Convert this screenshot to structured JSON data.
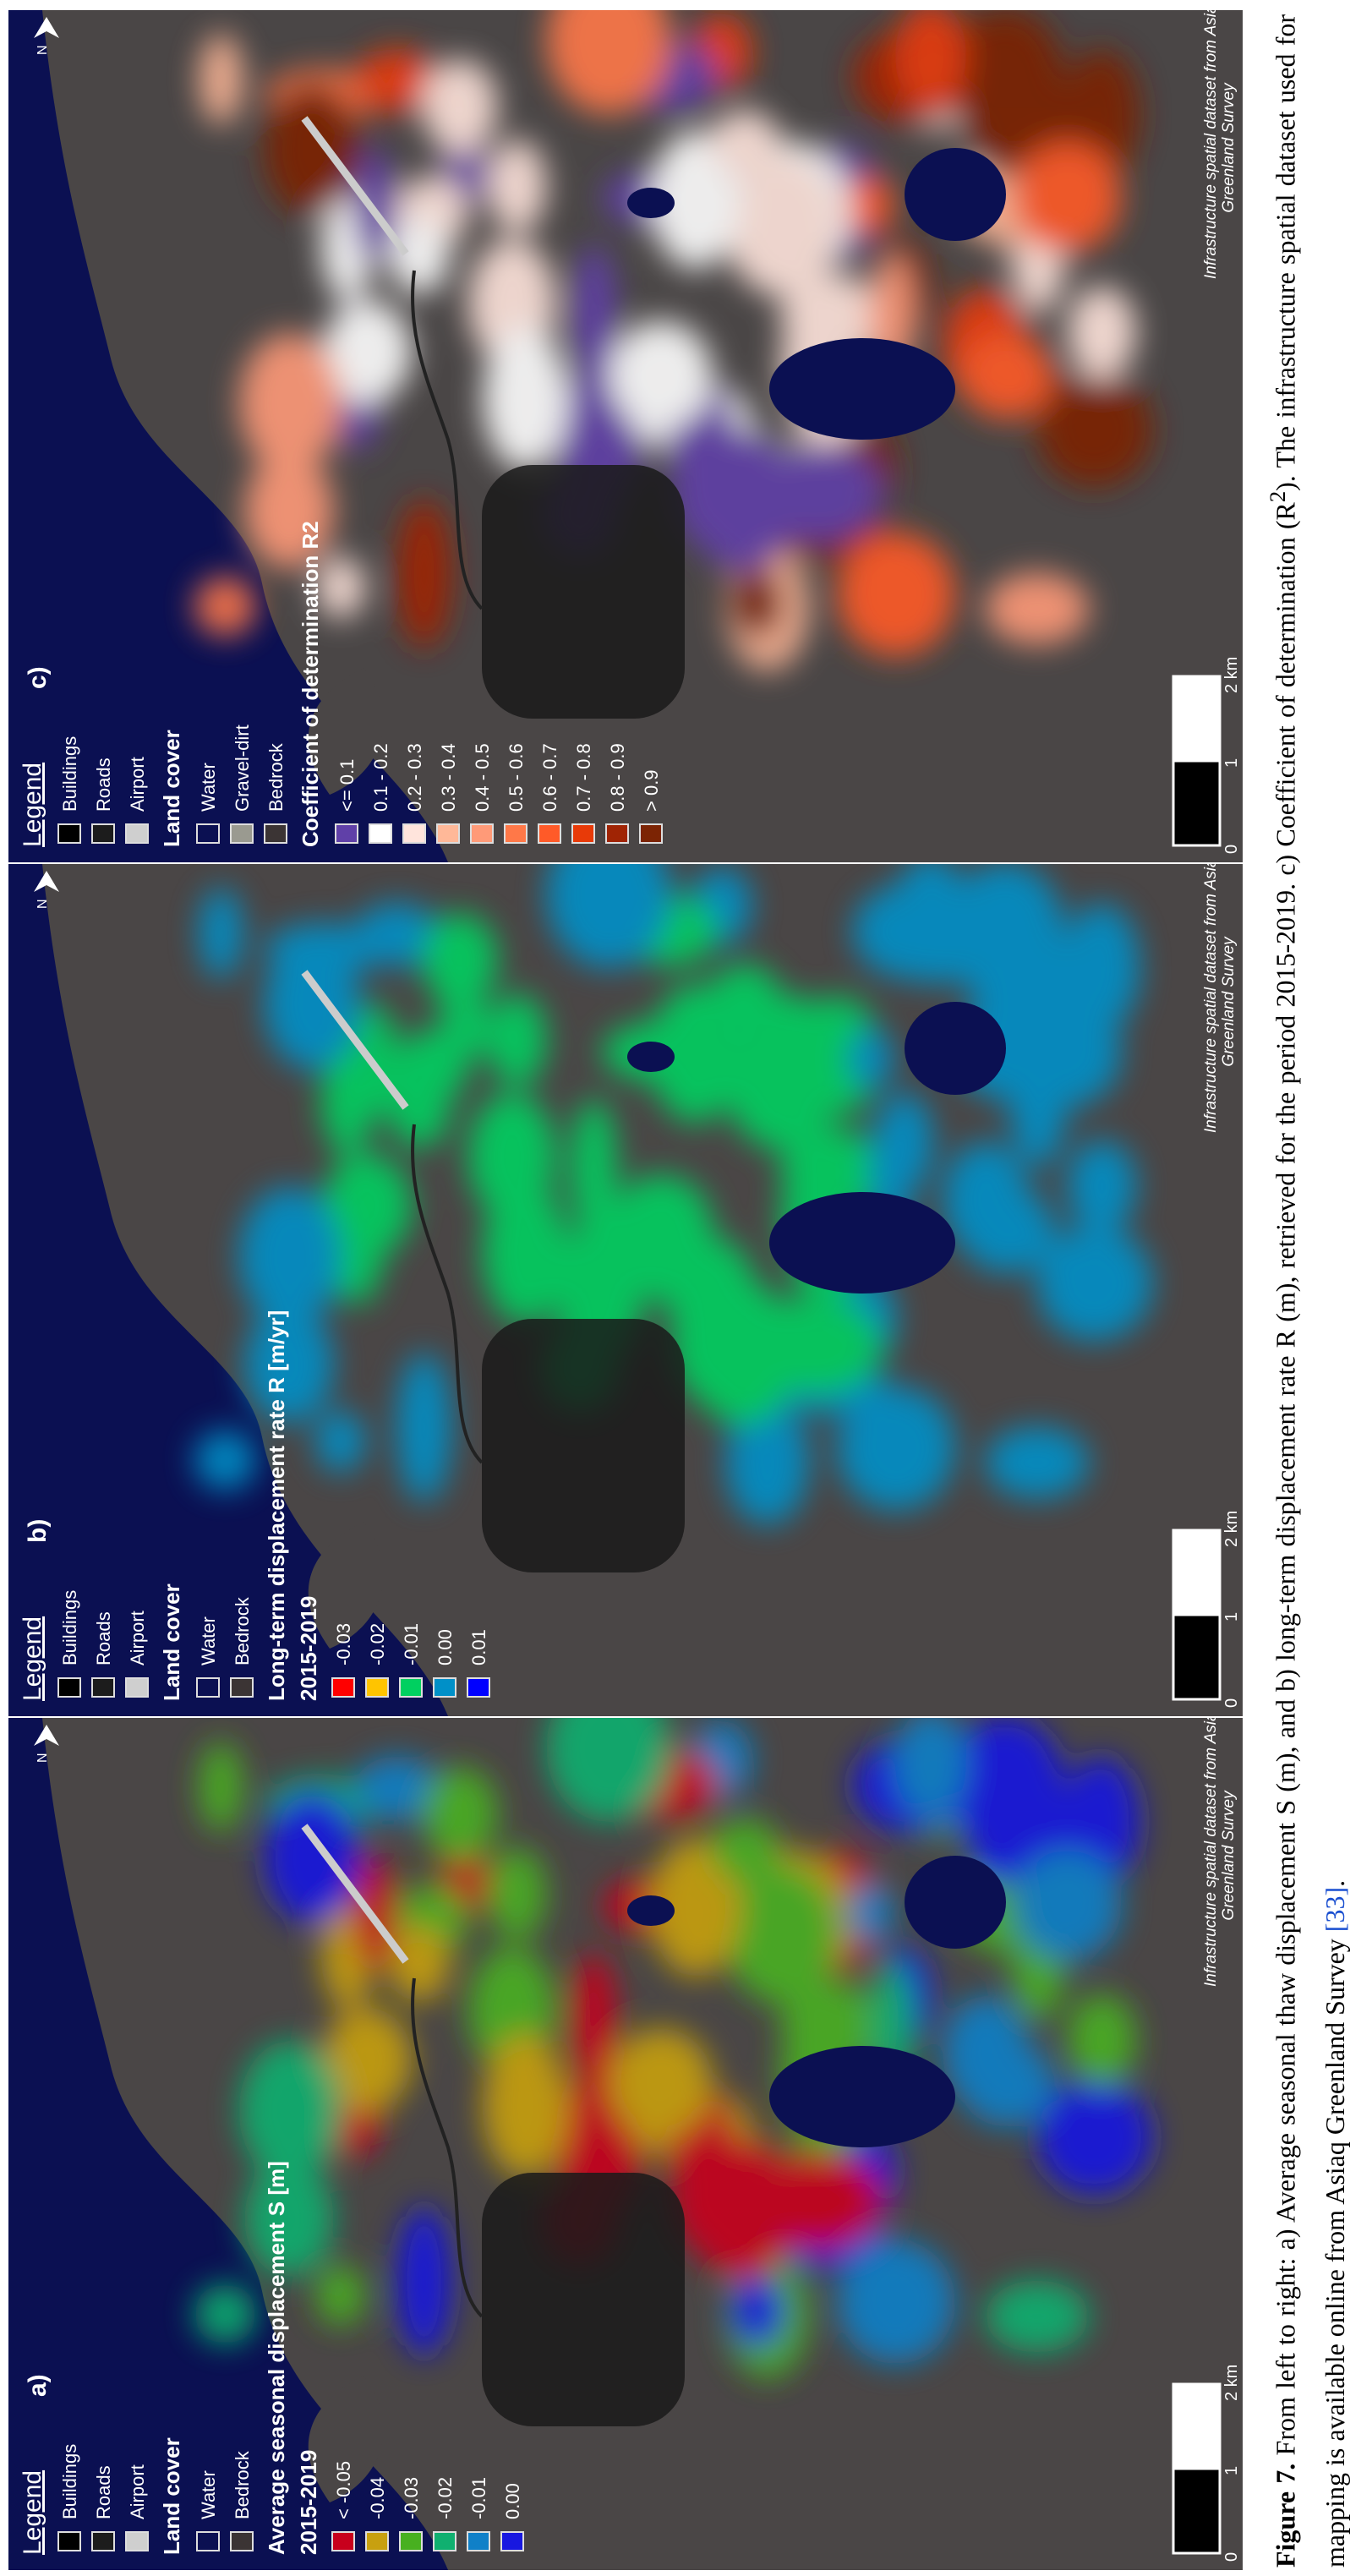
{
  "panels": [
    {
      "label": "a)",
      "legend_title": "Legend",
      "infrastructure": [
        {
          "label": "Buildings",
          "color": "#000000"
        },
        {
          "label": "Roads",
          "color": "#1c1c1c"
        },
        {
          "label": "Airport",
          "color": "#cfcfcf"
        }
      ],
      "land_cover_title": "Land cover",
      "land_cover": [
        {
          "label": "Water",
          "color": "#0b1052"
        },
        {
          "label": "Bedrock",
          "color": "#3b3434"
        }
      ],
      "scale_title": "Average seasonal displacement S [m]",
      "period": "2015-2019",
      "classes": [
        {
          "label": "< -0.05",
          "color": "#c8001c"
        },
        {
          "label": "-0.04",
          "color": "#c8a010"
        },
        {
          "label": "-0.03",
          "color": "#48b020"
        },
        {
          "label": "-0.02",
          "color": "#10b070"
        },
        {
          "label": "-0.01",
          "color": "#1080c8"
        },
        {
          "label": "0.00",
          "color": "#1818e0"
        }
      ],
      "scale_bar": [
        "0",
        "1",
        "2 km"
      ],
      "north": "N",
      "credit": [
        "Infrastructure spatial dataset from Asiaq",
        "Greenland Survey"
      ]
    },
    {
      "label": "b)",
      "legend_title": "Legend",
      "infrastructure": [
        {
          "label": "Buildings",
          "color": "#000000"
        },
        {
          "label": "Roads",
          "color": "#1c1c1c"
        },
        {
          "label": "Airport",
          "color": "#cfcfcf"
        }
      ],
      "land_cover_title": "Land cover",
      "land_cover": [
        {
          "label": "Water",
          "color": "#0b1052"
        },
        {
          "label": "Bedrock",
          "color": "#3b3434"
        }
      ],
      "scale_title": "Long-term displacement rate R [m/yr]",
      "period": "2015-2019",
      "classes": [
        {
          "label": "-0.03",
          "color": "#ff0000"
        },
        {
          "label": "-0.02",
          "color": "#ffc400"
        },
        {
          "label": "-0.01",
          "color": "#00d060"
        },
        {
          "label": "0.00",
          "color": "#0090c8"
        },
        {
          "label": "0.01",
          "color": "#0000ff"
        }
      ],
      "scale_bar": [
        "0",
        "1",
        "2 km"
      ],
      "north": "N",
      "credit": [
        "Infrastructure spatial dataset from Asiaq",
        "Greenland Survey"
      ]
    },
    {
      "label": "c)",
      "legend_title": "Legend",
      "infrastructure": [
        {
          "label": "Buildings",
          "color": "#000000"
        },
        {
          "label": "Roads",
          "color": "#1c1c1c"
        },
        {
          "label": "Airport",
          "color": "#cfcfcf"
        }
      ],
      "land_cover_title": "Land cover",
      "land_cover": [
        {
          "label": "Water",
          "color": "#0b1052"
        },
        {
          "label": "Gravel-dirt",
          "color": "#9a9a90"
        },
        {
          "label": "Bedrock",
          "color": "#3b3434"
        }
      ],
      "scale_title": "Coefficient of determination R2",
      "classes": [
        {
          "label": "<= 0.1",
          "color": "#6040a8"
        },
        {
          "label": "0.1 - 0.2",
          "color": "#ffffff"
        },
        {
          "label": "0.2 - 0.3",
          "color": "#ffe4dc"
        },
        {
          "label": "0.3 - 0.4",
          "color": "#ffb898"
        },
        {
          "label": "0.4 - 0.5",
          "color": "#ff9a78"
        },
        {
          "label": "0.5 - 0.6",
          "color": "#ff7848"
        },
        {
          "label": "0.6 - 0.7",
          "color": "#ff5a28"
        },
        {
          "label": "0.7 - 0.8",
          "color": "#e83a08"
        },
        {
          "label": "0.8 - 0.9",
          "color": "#a02404"
        },
        {
          "label": "> 0.9",
          "color": "#7c2404"
        }
      ],
      "scale_bar": [
        "0",
        "1",
        "2 km"
      ],
      "north": "N",
      "credit": [
        "Infrastructure spatial dataset from Asiaq",
        "Greenland Survey"
      ]
    }
  ],
  "caption": {
    "label": "Figure 7.",
    "text_1": "From left to right: a) Average seasonal thaw displacement S (m), and b) long-term displacement rate R (m), retrieved for the period 2015-2019. c) Coefficient of determination (R",
    "sup": "2",
    "text_2": "). The infrastructure spatial dataset used for mapping is available online from Asiaq Greenland Survey",
    "ref": "[33]",
    "end": "."
  }
}
